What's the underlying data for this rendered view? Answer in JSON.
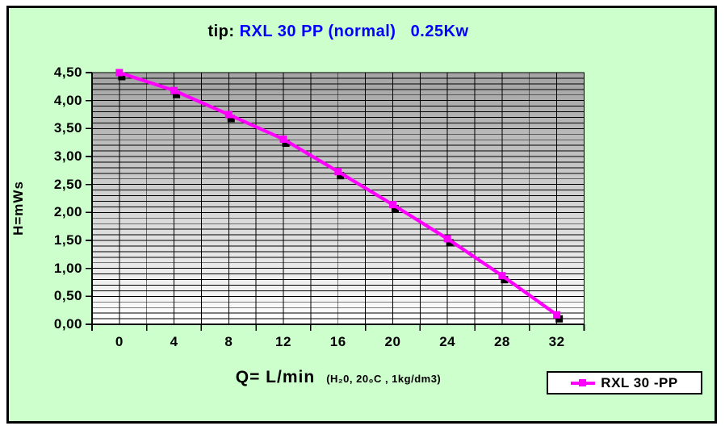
{
  "window": {
    "background": "#ccffcc",
    "border_color": "#000000"
  },
  "header": {
    "title_prefix": "tip: ",
    "title_main": "RXL 30 PP (normal)   0.25Kw",
    "title_accent_color": "#0000ff"
  },
  "axes": {
    "y_title": "H=mWs",
    "x_title_main": "Q= L/min",
    "x_title_note": "(H₂0, 20₀C , 1kg/dm3)"
  },
  "legend": {
    "label": "RXL 30 -PP",
    "line_color": "#ff00ff",
    "marker": "square"
  },
  "colors": {
    "chart_bg": "#ccffcc",
    "series": "#ff00ff",
    "title_accent": "#0000ff",
    "grid": "#000000",
    "plot_gradient_top": "#a3a3a3",
    "plot_gradient_bottom": "#ffffff"
  },
  "chart_data": {
    "type": "line",
    "title": "tip: RXL 30 PP (normal)   0.25Kw",
    "x": [
      0,
      4,
      8,
      12,
      16,
      20,
      24,
      28,
      32
    ],
    "x_tick_labels": [
      "0",
      "4",
      "8",
      "12",
      "16",
      "20",
      "24",
      "28",
      "32"
    ],
    "y_tick_labels": [
      "4,50",
      "4,00",
      "3,50",
      "3,00",
      "2,50",
      "2,00",
      "1,50",
      "1,00",
      "0,50",
      "0,00"
    ],
    "series": [
      {
        "name": "RXL 30 -PP",
        "color": "#ff00ff",
        "marker": "square",
        "values": [
          4.5,
          4.18,
          3.75,
          3.31,
          2.73,
          2.14,
          1.53,
          0.87,
          0.17
        ]
      }
    ],
    "xlabel": "Q= L/min (H₂0, 20₀C , 1kg/dm3)",
    "ylabel": "H=mWs",
    "ylim": [
      0,
      4.5
    ],
    "y_major_step": 0.5,
    "y_minor_step": 0.1,
    "x_minor_step": 2,
    "grid": "minor-both",
    "plot_background": {
      "type": "gradient",
      "from": "#a3a3a3",
      "to": "#ffffff",
      "direction": "top-to-bottom"
    },
    "legend_position": "bottom-right"
  }
}
